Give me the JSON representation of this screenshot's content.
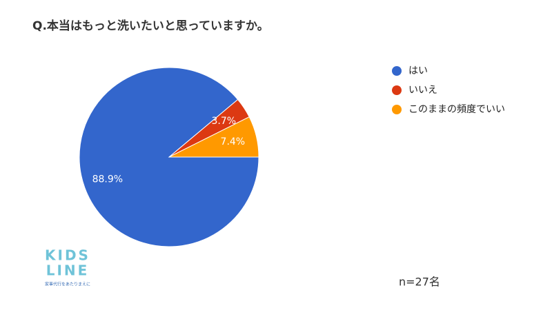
{
  "chart_data": {
    "type": "pie",
    "title": "Q.本当はもっと洗いたいと思っていますか。",
    "categories": [
      "はい",
      "いいえ",
      "このままの頻度でいい"
    ],
    "values": [
      88.9,
      3.7,
      7.4
    ],
    "value_labels": [
      "88.9%",
      "3.7%",
      "7.4%"
    ],
    "colors": [
      "#3366cc",
      "#dc3912",
      "#ff9900"
    ],
    "legend": "right",
    "annotation": "n=27名"
  },
  "logo": {
    "line1": "KIDS",
    "line2": "LINE",
    "tagline": "家事代行をあたりまえに"
  }
}
